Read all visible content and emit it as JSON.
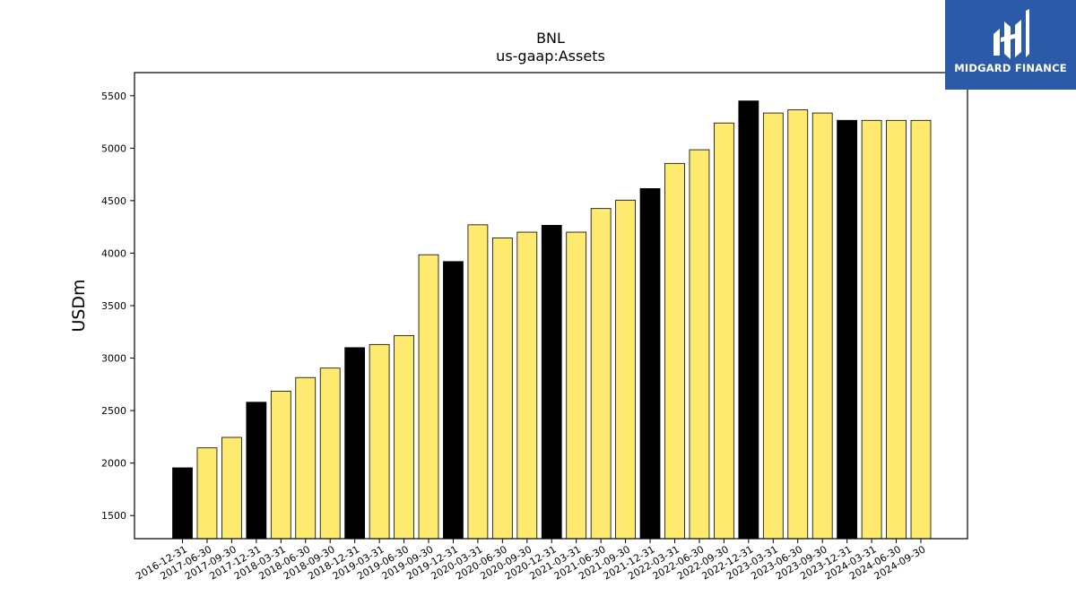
{
  "chart_data": {
    "type": "bar",
    "title": "BNL",
    "subtitle": "us-gaap:Assets",
    "ylabel": "USDm",
    "xlabel": "",
    "ylim": [
      1280,
      5720
    ],
    "yticks": [
      1500,
      2000,
      2500,
      3000,
      3500,
      4000,
      4500,
      5000,
      5500
    ],
    "categories": [
      "2016-12-31",
      "2017-06-30",
      "2017-09-30",
      "2017-12-31",
      "2018-03-31",
      "2018-06-30",
      "2018-09-30",
      "2018-12-31",
      "2019-03-31",
      "2019-06-30",
      "2019-09-30",
      "2019-12-31",
      "2020-03-31",
      "2020-06-30",
      "2020-09-30",
      "2020-12-31",
      "2021-03-31",
      "2021-06-30",
      "2021-09-30",
      "2021-12-31",
      "2022-03-31",
      "2022-06-30",
      "2022-09-30",
      "2022-12-31",
      "2023-03-31",
      "2023-06-30",
      "2023-09-30",
      "2023-12-31",
      "2024-03-31",
      "2024-06-30",
      "2024-09-30"
    ],
    "values": [
      1955,
      2145,
      2245,
      2580,
      2685,
      2815,
      2905,
      3100,
      3130,
      3215,
      3985,
      3920,
      4270,
      4145,
      4200,
      4265,
      4200,
      4425,
      4505,
      4615,
      4855,
      4985,
      5240,
      5450,
      5335,
      5365,
      5335,
      5265,
      5265,
      5265,
      5265
    ],
    "annual_flags": [
      true,
      false,
      false,
      true,
      false,
      false,
      false,
      true,
      false,
      false,
      false,
      true,
      false,
      false,
      false,
      true,
      false,
      false,
      false,
      true,
      false,
      false,
      false,
      true,
      false,
      false,
      false,
      true,
      false,
      false,
      false
    ],
    "colors": {
      "annual": "#000000",
      "quarterly": "#ffea70",
      "edge": "#000000"
    },
    "grid": false,
    "legend": "none"
  },
  "logo": {
    "text": "MIDGARD FINANCE",
    "icon": "midgard-logo-icon",
    "background": "#2b5aa8"
  }
}
